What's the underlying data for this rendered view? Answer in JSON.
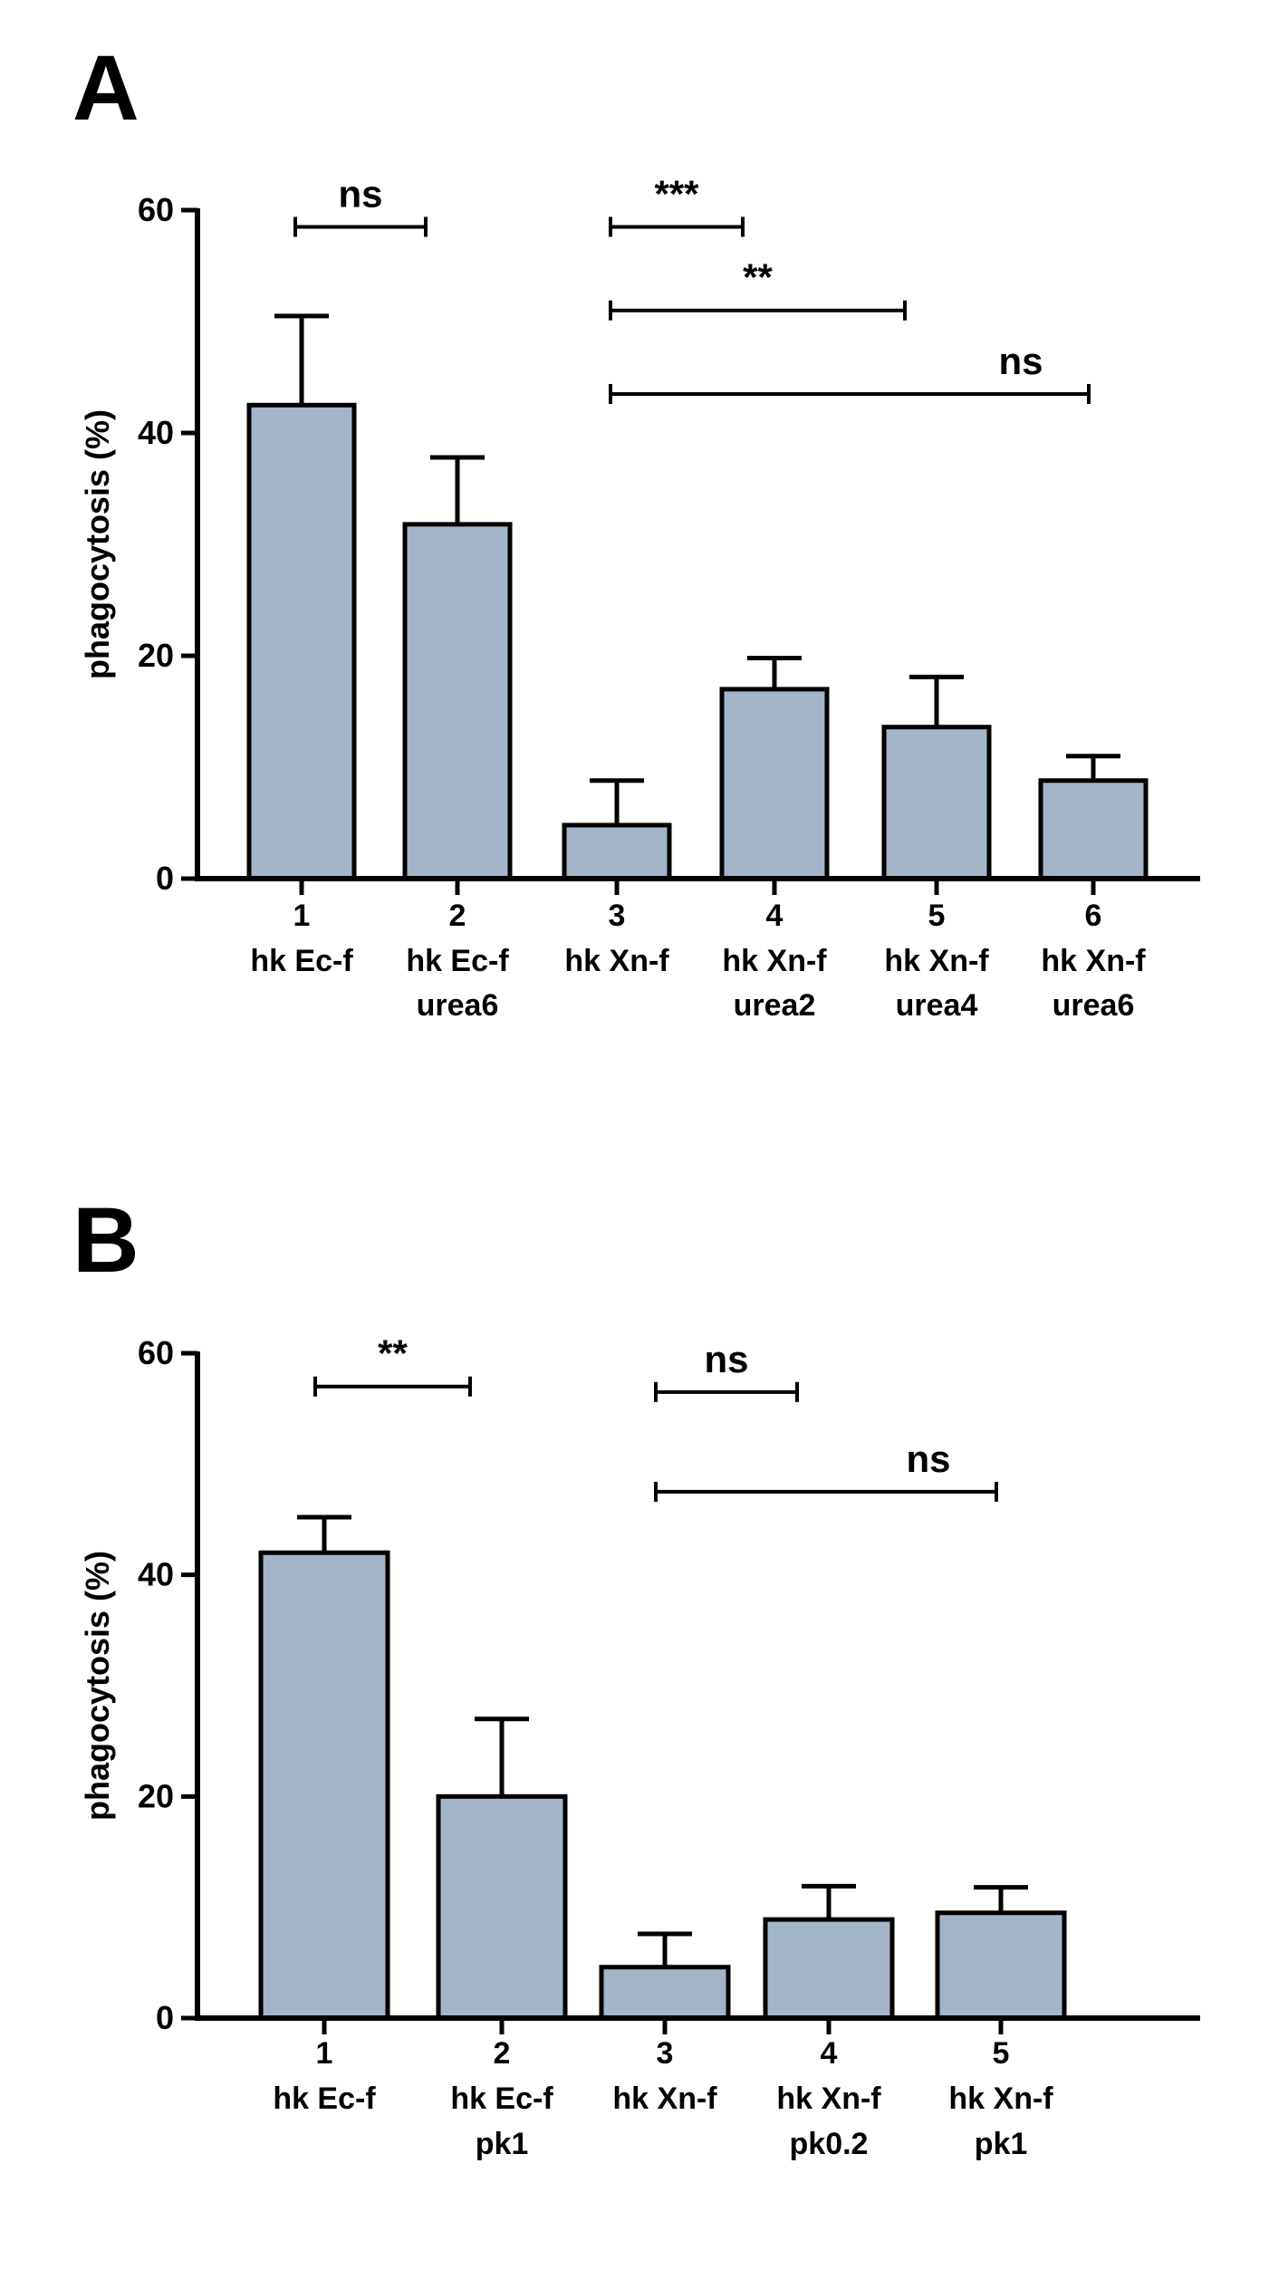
{
  "chart_data": [
    {
      "panel": "A",
      "type": "bar",
      "ylabel": "phagocytosis (%)",
      "ylim": [
        0,
        60
      ],
      "yticks": [
        0,
        20,
        40,
        60
      ],
      "bar_color": "#a5b5c8",
      "categories": [
        {
          "num": "1",
          "line1": "hk Ec-f",
          "line2": ""
        },
        {
          "num": "2",
          "line1": "hk Ec-f",
          "line2": "urea6"
        },
        {
          "num": "3",
          "line1": "hk Xn-f",
          "line2": ""
        },
        {
          "num": "4",
          "line1": "hk Xn-f",
          "line2": "urea2"
        },
        {
          "num": "5",
          "line1": "hk Xn-f",
          "line2": "urea4"
        },
        {
          "num": "6",
          "line1": "hk Xn-f",
          "line2": "urea6"
        }
      ],
      "values": [
        42.5,
        31.8,
        4.8,
        17.0,
        13.6,
        8.8
      ],
      "errors": [
        8.0,
        6.0,
        4.0,
        2.8,
        4.5,
        2.2
      ],
      "significance": [
        {
          "from": 0,
          "to": 1,
          "y": 58.5,
          "label": "ns"
        },
        {
          "from": 2,
          "to": 3,
          "y": 58.5,
          "label": "***"
        },
        {
          "from": 2,
          "to": 4,
          "y": 51.0,
          "label": "**"
        },
        {
          "from": 2,
          "to": 5,
          "y": 43.5,
          "label": "ns"
        }
      ]
    },
    {
      "panel": "B",
      "type": "bar",
      "ylabel": "phagocytosis (%)",
      "ylim": [
        0,
        60
      ],
      "yticks": [
        0,
        20,
        40,
        60
      ],
      "bar_color": "#a5b5c8",
      "categories": [
        {
          "num": "1",
          "line1": "hk Ec-f",
          "line2": ""
        },
        {
          "num": "2",
          "line1": "hk Ec-f",
          "line2": "pk1"
        },
        {
          "num": "3",
          "line1": "hk Xn-f",
          "line2": ""
        },
        {
          "num": "4",
          "line1": "hk Xn-f",
          "line2": "pk0.2"
        },
        {
          "num": "5",
          "line1": "hk Xn-f",
          "line2": "pk1"
        }
      ],
      "values": [
        42.0,
        20.0,
        4.6,
        8.9,
        9.5
      ],
      "errors": [
        3.2,
        7.0,
        3.0,
        3.0,
        2.3
      ],
      "significance": [
        {
          "from": 0,
          "to": 1,
          "y": 57.0,
          "label": "**"
        },
        {
          "from": 2,
          "to": 3,
          "y": 56.5,
          "label": "ns"
        },
        {
          "from": 2,
          "to": 4,
          "y": 47.5,
          "label": "ns"
        }
      ]
    }
  ],
  "panels": {
    "a_letter": "A",
    "b_letter": "B"
  }
}
